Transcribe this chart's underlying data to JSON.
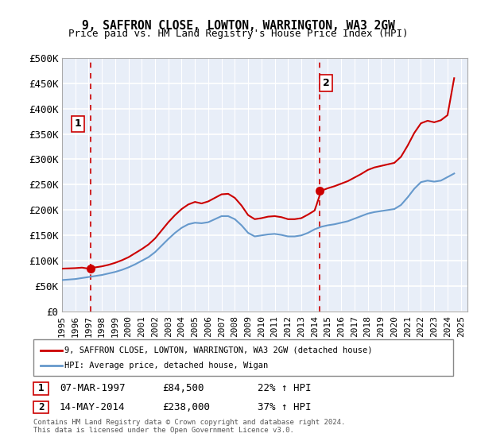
{
  "title1": "9, SAFFRON CLOSE, LOWTON, WARRINGTON, WA3 2GW",
  "title2": "Price paid vs. HM Land Registry's House Price Index (HPI)",
  "legend_line1": "9, SAFFRON CLOSE, LOWTON, WARRINGTON, WA3 2GW (detached house)",
  "legend_line2": "HPI: Average price, detached house, Wigan",
  "annotation1": {
    "label": "1",
    "date": "07-MAR-1997",
    "price": "£84,500",
    "pct": "22% ↑ HPI"
  },
  "annotation2": {
    "label": "2",
    "date": "14-MAY-2014",
    "price": "£238,000",
    "pct": "37% ↑ HPI"
  },
  "footnote": "Contains HM Land Registry data © Crown copyright and database right 2024.\nThis data is licensed under the Open Government Licence v3.0.",
  "bg_color": "#e8eef8",
  "plot_bg_color": "#e8eef8",
  "grid_color": "#ffffff",
  "red_line_color": "#cc0000",
  "blue_line_color": "#6699cc",
  "dashed_line_color": "#cc0000",
  "marker1_color": "#cc0000",
  "marker2_color": "#cc0000",
  "ylim": [
    0,
    500000
  ],
  "yticks": [
    0,
    50000,
    100000,
    150000,
    200000,
    250000,
    300000,
    350000,
    400000,
    450000,
    500000
  ],
  "ytick_labels": [
    "£0",
    "£50K",
    "£100K",
    "£150K",
    "£200K",
    "£250K",
    "£300K",
    "£350K",
    "£400K",
    "£450K",
    "£500K"
  ],
  "xlim_start": 1995.0,
  "xlim_end": 2025.5,
  "sale1_x": 1997.18,
  "sale1_y": 84500,
  "sale2_x": 2014.37,
  "sale2_y": 238000,
  "hpi_x": [
    1995,
    1995.5,
    1996,
    1996.5,
    1997,
    1997.5,
    1998,
    1998.5,
    1999,
    1999.5,
    2000,
    2000.5,
    2001,
    2001.5,
    2002,
    2002.5,
    2003,
    2003.5,
    2004,
    2004.5,
    2005,
    2005.5,
    2006,
    2006.5,
    2007,
    2007.5,
    2008,
    2008.5,
    2009,
    2009.5,
    2010,
    2010.5,
    2011,
    2011.5,
    2012,
    2012.5,
    2013,
    2013.5,
    2014,
    2014.5,
    2015,
    2015.5,
    2016,
    2016.5,
    2017,
    2017.5,
    2018,
    2018.5,
    2019,
    2019.5,
    2020,
    2020.5,
    2021,
    2021.5,
    2022,
    2022.5,
    2023,
    2023.5,
    2024,
    2024.5
  ],
  "hpi_y": [
    62000,
    63000,
    64000,
    66000,
    68000,
    70000,
    72000,
    75000,
    78000,
    82000,
    87000,
    93000,
    100000,
    107000,
    117000,
    130000,
    143000,
    155000,
    165000,
    172000,
    175000,
    174000,
    176000,
    182000,
    188000,
    188000,
    182000,
    170000,
    155000,
    148000,
    150000,
    152000,
    153000,
    151000,
    148000,
    148000,
    150000,
    155000,
    162000,
    167000,
    170000,
    172000,
    175000,
    178000,
    183000,
    188000,
    193000,
    196000,
    198000,
    200000,
    202000,
    210000,
    225000,
    242000,
    255000,
    258000,
    256000,
    258000,
    265000,
    272000
  ],
  "prop_x": [
    1995,
    1995.5,
    1996,
    1996.5,
    1997,
    1997.5,
    1998,
    1998.5,
    1999,
    1999.5,
    2000,
    2000.5,
    2001,
    2001.5,
    2002,
    2002.5,
    2003,
    2003.5,
    2004,
    2004.5,
    2005,
    2005.5,
    2006,
    2006.5,
    2007,
    2007.5,
    2008,
    2008.5,
    2009,
    2009.5,
    2010,
    2010.5,
    2011,
    2011.5,
    2012,
    2012.5,
    2013,
    2013.5,
    2014,
    2014.5,
    2015,
    2015.5,
    2016,
    2016.5,
    2017,
    2017.5,
    2018,
    2018.5,
    2019,
    2019.5,
    2020,
    2020.5,
    2021,
    2021.5,
    2022,
    2022.5,
    2023,
    2023.5,
    2024,
    2024.5
  ],
  "prop_y": [
    84500,
    85000,
    85500,
    86500,
    84500,
    87000,
    89000,
    92000,
    96000,
    101000,
    107000,
    115000,
    123000,
    132000,
    144000,
    160000,
    176000,
    190000,
    202000,
    211000,
    216000,
    213000,
    217000,
    224000,
    231000,
    232000,
    224000,
    209000,
    190000,
    182000,
    184000,
    187000,
    188000,
    186000,
    182000,
    182000,
    184000,
    191000,
    199000,
    238000,
    243000,
    247000,
    252000,
    257000,
    264000,
    271000,
    279000,
    284000,
    287000,
    290000,
    293000,
    305000,
    327000,
    352000,
    371000,
    376000,
    373000,
    377000,
    387000,
    460000
  ]
}
